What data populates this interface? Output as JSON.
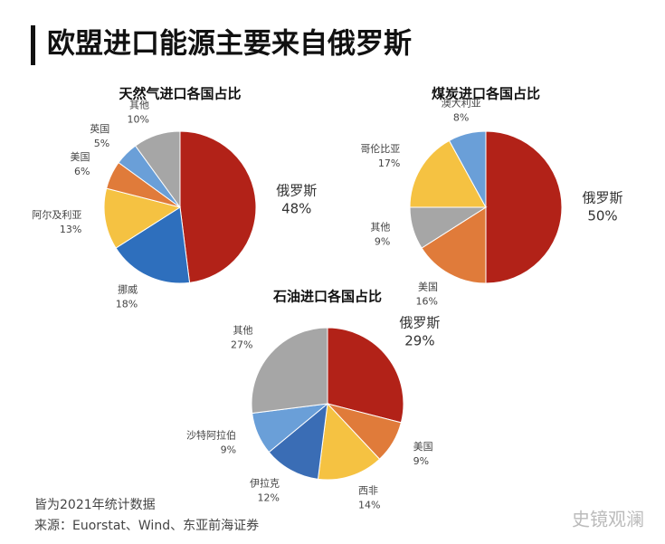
{
  "title": "欧盟进口能源主要来自俄罗斯",
  "notes": [
    "皆为2021年统计数据",
    "来源：Euorstat、Wind、东亚前海证券"
  ],
  "watermark": "史镜观澜",
  "chart_data": [
    {
      "type": "pie",
      "title": "天然气进口各国占比",
      "categories": [
        "俄罗斯",
        "挪威",
        "阿尔及利亚",
        "美国",
        "英国",
        "其他"
      ],
      "values": [
        48,
        18,
        13,
        6,
        5,
        10
      ],
      "value_labels": [
        "48%",
        "18%",
        "13%",
        "6%",
        "5%",
        "10%"
      ],
      "colors": [
        "#b22218",
        "#2e6fbd",
        "#f5c242",
        "#e07b3a",
        "#6a9fd8",
        "#a6a6a6"
      ]
    },
    {
      "type": "pie",
      "title": "煤炭进口各国占比",
      "categories": [
        "俄罗斯",
        "美国",
        "其他",
        "哥伦比亚",
        "澳大利亚"
      ],
      "values": [
        50,
        16,
        9,
        17,
        8
      ],
      "value_labels": [
        "50%",
        "16%",
        "9%",
        "17%",
        "8%"
      ],
      "colors": [
        "#b22218",
        "#e07b3a",
        "#a6a6a6",
        "#f5c242",
        "#6a9fd8"
      ]
    },
    {
      "type": "pie",
      "title": "石油进口各国占比",
      "categories": [
        "俄罗斯",
        "美国",
        "西非",
        "伊拉克",
        "沙特阿拉伯",
        "其他"
      ],
      "values": [
        29,
        9,
        14,
        12,
        9,
        27
      ],
      "value_labels": [
        "29%",
        "9%",
        "14%",
        "12%",
        "9%",
        "27%"
      ],
      "colors": [
        "#b22218",
        "#e07b3a",
        "#f5c242",
        "#3a6db5",
        "#6a9fd8",
        "#a6a6a6"
      ]
    }
  ]
}
